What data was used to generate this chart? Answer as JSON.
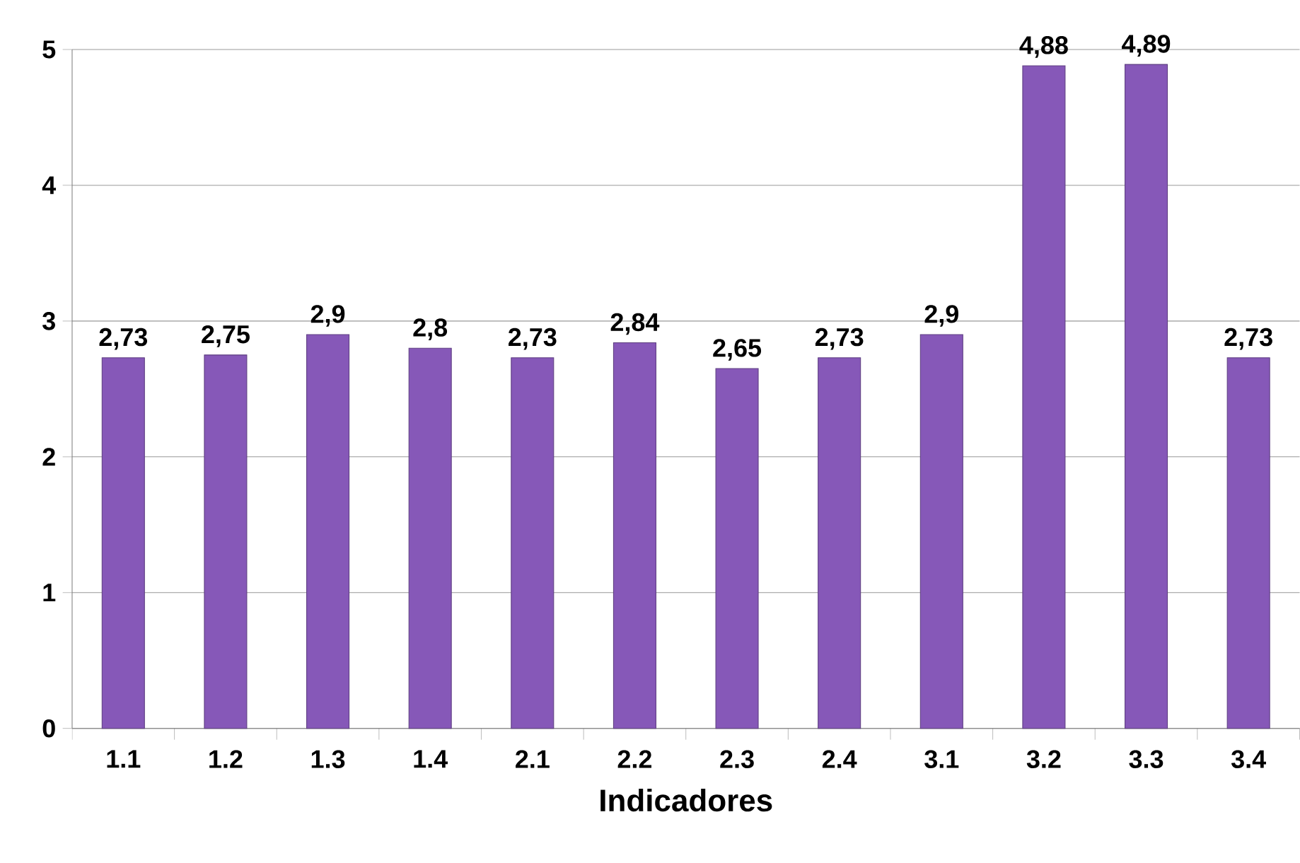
{
  "chart_data": {
    "type": "bar",
    "xlabel": "Indicadores",
    "categories": [
      "1.1",
      "1.2",
      "1.3",
      "1.4",
      "2.1",
      "2.2",
      "2.3",
      "2.4",
      "3.1",
      "3.2",
      "3.3",
      "3.4"
    ],
    "values": [
      2.73,
      2.75,
      2.9,
      2.8,
      2.73,
      2.84,
      2.65,
      2.73,
      2.9,
      4.88,
      4.89,
      2.73
    ],
    "value_labels": [
      "2,73",
      "2,75",
      "2,9",
      "2,8",
      "2,73",
      "2,84",
      "2,65",
      "2,73",
      "2,9",
      "4,88",
      "4,89",
      "2,73"
    ],
    "color": "#8658b8",
    "ylim": [
      0,
      5
    ],
    "yticks": [
      0,
      1,
      2,
      3,
      4,
      5
    ],
    "grid": "y"
  }
}
